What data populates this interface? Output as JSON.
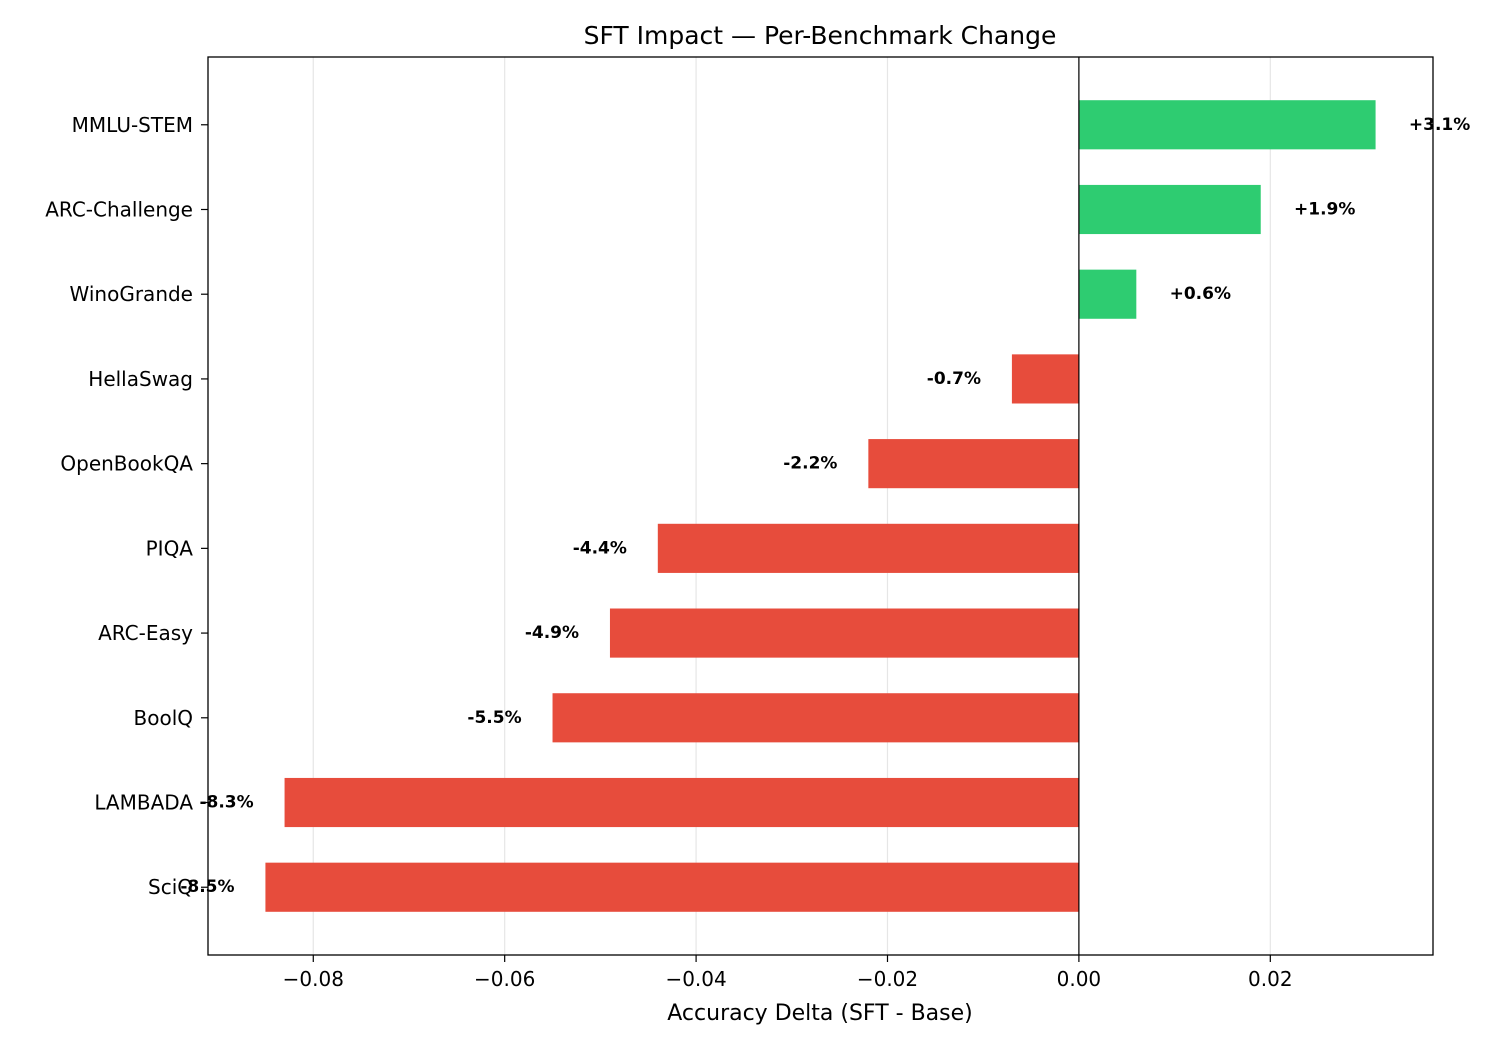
{
  "chart_data": {
    "type": "bar",
    "orientation": "horizontal",
    "title": "SFT Impact — Per-Benchmark Change",
    "xlabel": "Accuracy Delta (SFT - Base)",
    "ylabel": "",
    "xlim": [
      -0.091,
      0.037
    ],
    "x_ticks": [
      -0.08,
      -0.06,
      -0.04,
      -0.02,
      0.0,
      0.02
    ],
    "x_tick_labels": [
      "−0.08",
      "−0.06",
      "−0.04",
      "−0.02",
      "0.00",
      "0.02"
    ],
    "grid": "vertical",
    "categories": [
      "MMLU-STEM",
      "ARC-Challenge",
      "WinoGrande",
      "HellaSwag",
      "OpenBookQA",
      "PIQA",
      "ARC-Easy",
      "BoolQ",
      "LAMBADA",
      "SciQ"
    ],
    "values": [
      0.031,
      0.019,
      0.006,
      -0.007,
      -0.022,
      -0.044,
      -0.049,
      -0.055,
      -0.083,
      -0.085
    ],
    "data_labels": [
      "+3.1%",
      "+1.9%",
      "+0.6%",
      "-0.7%",
      "-2.2%",
      "-4.4%",
      "-4.9%",
      "-5.5%",
      "-8.3%",
      "-8.5%"
    ],
    "colors": {
      "positive": "#2ecc71",
      "negative": "#e74c3c",
      "grid": "#e6e6e6",
      "zero_line": "#000000"
    }
  }
}
